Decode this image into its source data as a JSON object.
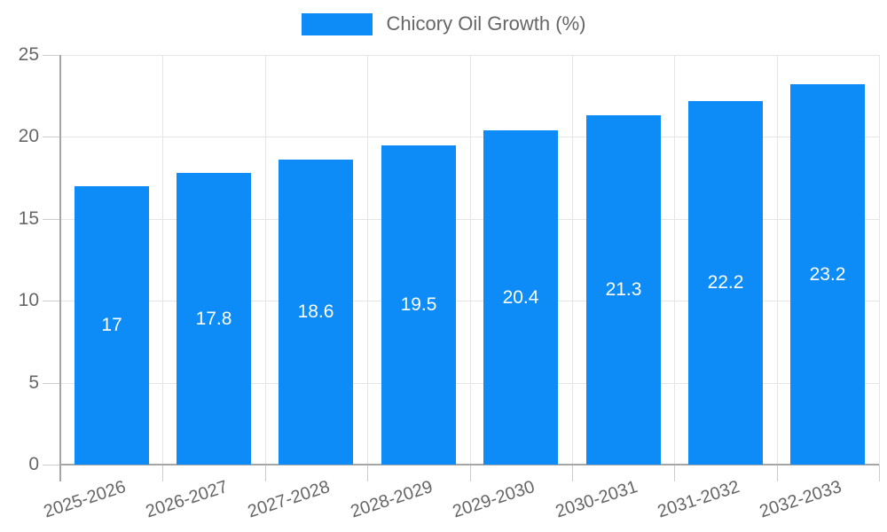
{
  "chart_data": {
    "type": "bar",
    "title": "",
    "legend": "Chicory Oil Growth (%)",
    "categories": [
      "2025-2026",
      "2026-2027",
      "2027-2028",
      "2028-2029",
      "2029-2030",
      "2030-2031",
      "2031-2032",
      "2032-2033"
    ],
    "values": [
      17,
      17.8,
      18.6,
      19.5,
      20.4,
      21.3,
      22.2,
      23.2
    ],
    "value_labels": [
      "17",
      "17.8",
      "18.6",
      "19.5",
      "20.4",
      "21.3",
      "22.2",
      "23.2"
    ],
    "xlabel": "",
    "ylabel": "",
    "ylim": [
      0,
      25
    ],
    "yticks": [
      0,
      5,
      10,
      15,
      20,
      25
    ],
    "ytick_labels": [
      "0",
      "5",
      "10",
      "15",
      "20",
      "25"
    ],
    "grid": true,
    "legend_position": "top-center",
    "colors": {
      "bar": "#0d8cf7",
      "bar_label": "#ffffff",
      "axis_text": "#666666",
      "legend_text": "#666666",
      "grid_line": "#e5e5e5",
      "tick_line": "#cccccc",
      "axis_line": "#a6a6a6",
      "background": "#ffffff"
    }
  }
}
